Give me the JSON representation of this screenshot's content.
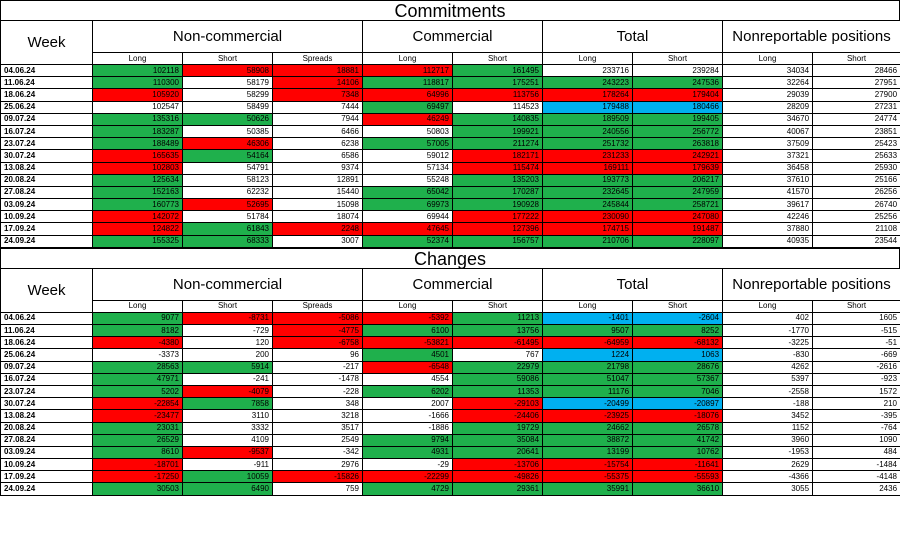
{
  "colors": {
    "green": "#1fb04c",
    "red": "#ff0000",
    "blue": "#00b0f0"
  },
  "commitments": {
    "title": "Commitments",
    "week_label": "Week",
    "groups": {
      "noncommercial": "Non-commercial",
      "commercial": "Commercial",
      "total": "Total",
      "nonreportable": "Nonreportable positions"
    },
    "subheaders": [
      "Long",
      "Short",
      "Spreads",
      "Long",
      "Short",
      "Long",
      "Short",
      "Long",
      "Short"
    ],
    "rows": [
      {
        "week": "04.06.24",
        "values": [
          "102118",
          "58908",
          "18881",
          "112717",
          "161495",
          "233716",
          "239284",
          "34034",
          "28466"
        ],
        "colors": [
          "g",
          "r",
          "r",
          "r",
          "g",
          "w",
          "w",
          "w",
          "w"
        ]
      },
      {
        "week": "11.06.24",
        "values": [
          "110300",
          "58179",
          "14106",
          "118817",
          "175251",
          "243223",
          "247536",
          "32264",
          "27951"
        ],
        "colors": [
          "g",
          "w",
          "r",
          "g",
          "g",
          "g",
          "g",
          "w",
          "w"
        ]
      },
      {
        "week": "18.06.24",
        "values": [
          "105920",
          "58299",
          "7348",
          "64996",
          "113756",
          "178264",
          "179404",
          "29039",
          "27900"
        ],
        "colors": [
          "r",
          "w",
          "r",
          "r",
          "r",
          "r",
          "r",
          "w",
          "w"
        ]
      },
      {
        "week": "25.06.24",
        "values": [
          "102547",
          "58499",
          "7444",
          "69497",
          "114523",
          "179488",
          "180466",
          "28209",
          "27231"
        ],
        "colors": [
          "w",
          "w",
          "w",
          "g",
          "w",
          "b",
          "b",
          "w",
          "w"
        ]
      },
      {
        "week": "09.07.24",
        "values": [
          "135316",
          "50626",
          "7944",
          "46249",
          "140835",
          "189509",
          "199405",
          "34670",
          "24774"
        ],
        "colors": [
          "g",
          "g",
          "w",
          "r",
          "g",
          "g",
          "g",
          "w",
          "w"
        ]
      },
      {
        "week": "16.07.24",
        "values": [
          "183287",
          "50385",
          "6466",
          "50803",
          "199921",
          "240556",
          "256772",
          "40067",
          "23851"
        ],
        "colors": [
          "g",
          "w",
          "w",
          "w",
          "g",
          "g",
          "g",
          "w",
          "w"
        ]
      },
      {
        "week": "23.07.24",
        "values": [
          "188489",
          "46306",
          "6238",
          "57005",
          "211274",
          "251732",
          "263818",
          "37509",
          "25423"
        ],
        "colors": [
          "g",
          "r",
          "w",
          "g",
          "g",
          "g",
          "g",
          "w",
          "w"
        ]
      },
      {
        "week": "30.07.24",
        "values": [
          "165635",
          "54164",
          "6586",
          "59012",
          "182171",
          "231233",
          "242921",
          "37321",
          "25633"
        ],
        "colors": [
          "r",
          "g",
          "w",
          "w",
          "r",
          "r",
          "r",
          "w",
          "w"
        ]
      },
      {
        "week": "13.08.24",
        "values": [
          "102803",
          "54791",
          "9374",
          "57134",
          "115474",
          "169111",
          "179639",
          "36458",
          "25930"
        ],
        "colors": [
          "r",
          "w",
          "w",
          "w",
          "r",
          "r",
          "r",
          "w",
          "w"
        ]
      },
      {
        "week": "20.08.24",
        "values": [
          "125634",
          "58123",
          "12891",
          "55248",
          "135203",
          "193773",
          "206217",
          "37610",
          "25166"
        ],
        "colors": [
          "g",
          "w",
          "w",
          "w",
          "g",
          "g",
          "g",
          "w",
          "w"
        ]
      },
      {
        "week": "27.08.24",
        "values": [
          "152163",
          "62232",
          "15440",
          "65042",
          "170287",
          "232645",
          "247959",
          "41570",
          "26256"
        ],
        "colors": [
          "g",
          "w",
          "w",
          "g",
          "g",
          "g",
          "g",
          "w",
          "w"
        ]
      },
      {
        "week": "03.09.24",
        "values": [
          "160773",
          "52695",
          "15098",
          "69973",
          "190928",
          "245844",
          "258721",
          "39617",
          "26740"
        ],
        "colors": [
          "g",
          "r",
          "w",
          "g",
          "g",
          "g",
          "g",
          "w",
          "w"
        ]
      },
      {
        "week": "10.09.24",
        "values": [
          "142072",
          "51784",
          "18074",
          "69944",
          "177222",
          "230090",
          "247080",
          "42246",
          "25256"
        ],
        "colors": [
          "r",
          "w",
          "w",
          "w",
          "r",
          "r",
          "r",
          "w",
          "w"
        ]
      },
      {
        "week": "17.09.24",
        "values": [
          "124822",
          "61843",
          "2248",
          "47645",
          "127396",
          "174715",
          "191487",
          "37880",
          "21108"
        ],
        "colors": [
          "r",
          "g",
          "r",
          "r",
          "r",
          "r",
          "r",
          "w",
          "w"
        ]
      },
      {
        "week": "24.09.24",
        "values": [
          "155325",
          "68333",
          "3007",
          "52374",
          "156757",
          "210706",
          "228097",
          "40935",
          "23544"
        ],
        "colors": [
          "g",
          "g",
          "w",
          "g",
          "g",
          "g",
          "g",
          "w",
          "w"
        ]
      }
    ]
  },
  "changes": {
    "title": "Changes",
    "week_label": "Week",
    "groups": {
      "noncommercial": "Non-commercial",
      "commercial": "Commercial",
      "total": "Total",
      "nonreportable": "Nonreportable positions"
    },
    "subheaders": [
      "Long",
      "Short",
      "Spreads",
      "Long",
      "Short",
      "Long",
      "Short",
      "Long",
      "Short"
    ],
    "rows": [
      {
        "week": "04.06.24",
        "values": [
          "9077",
          "-8731",
          "-5086",
          "-5392",
          "11213",
          "-1401",
          "-2604",
          "402",
          "1605"
        ],
        "colors": [
          "g",
          "r",
          "r",
          "r",
          "g",
          "b",
          "b",
          "w",
          "w"
        ]
      },
      {
        "week": "11.06.24",
        "values": [
          "8182",
          "-729",
          "-4775",
          "6100",
          "13756",
          "9507",
          "8252",
          "-1770",
          "-515"
        ],
        "colors": [
          "g",
          "w",
          "r",
          "g",
          "g",
          "g",
          "g",
          "w",
          "w"
        ]
      },
      {
        "week": "18.06.24",
        "values": [
          "-4380",
          "120",
          "-6758",
          "-53821",
          "-61495",
          "-64959",
          "-68132",
          "-3225",
          "-51"
        ],
        "colors": [
          "r",
          "w",
          "r",
          "r",
          "r",
          "r",
          "r",
          "w",
          "w"
        ]
      },
      {
        "week": "25.06.24",
        "values": [
          "-3373",
          "200",
          "96",
          "4501",
          "767",
          "1224",
          "1063",
          "-830",
          "-669"
        ],
        "colors": [
          "w",
          "w",
          "w",
          "g",
          "w",
          "b",
          "b",
          "w",
          "w"
        ]
      },
      {
        "week": "09.07.24",
        "values": [
          "28563",
          "5914",
          "-217",
          "-6548",
          "22979",
          "21798",
          "28676",
          "4262",
          "-2616"
        ],
        "colors": [
          "g",
          "g",
          "w",
          "r",
          "g",
          "g",
          "g",
          "w",
          "w"
        ]
      },
      {
        "week": "16.07.24",
        "values": [
          "47971",
          "-241",
          "-1478",
          "4554",
          "59086",
          "51047",
          "57367",
          "5397",
          "-923"
        ],
        "colors": [
          "g",
          "w",
          "w",
          "w",
          "g",
          "g",
          "g",
          "w",
          "w"
        ]
      },
      {
        "week": "23.07.24",
        "values": [
          "5202",
          "-4079",
          "-228",
          "6202",
          "11353",
          "11176",
          "7046",
          "-2558",
          "1572"
        ],
        "colors": [
          "g",
          "r",
          "w",
          "g",
          "g",
          "g",
          "g",
          "w",
          "w"
        ]
      },
      {
        "week": "30.07.24",
        "values": [
          "-22854",
          "7858",
          "348",
          "2007",
          "-29103",
          "-20499",
          "-20897",
          "-188",
          "210"
        ],
        "colors": [
          "r",
          "g",
          "w",
          "w",
          "r",
          "b",
          "b",
          "w",
          "w"
        ]
      },
      {
        "week": "13.08.24",
        "values": [
          "-23477",
          "3110",
          "3218",
          "-1666",
          "-24406",
          "-23925",
          "-18076",
          "3452",
          "-395"
        ],
        "colors": [
          "r",
          "w",
          "w",
          "w",
          "r",
          "r",
          "r",
          "w",
          "w"
        ]
      },
      {
        "week": "20.08.24",
        "values": [
          "23031",
          "3332",
          "3517",
          "-1886",
          "19729",
          "24662",
          "26578",
          "1152",
          "-764"
        ],
        "colors": [
          "g",
          "w",
          "w",
          "w",
          "g",
          "g",
          "g",
          "w",
          "w"
        ]
      },
      {
        "week": "27.08.24",
        "values": [
          "26529",
          "4109",
          "2549",
          "9794",
          "35084",
          "38872",
          "41742",
          "3960",
          "1090"
        ],
        "colors": [
          "g",
          "w",
          "w",
          "g",
          "g",
          "g",
          "g",
          "w",
          "w"
        ]
      },
      {
        "week": "03.09.24",
        "values": [
          "8610",
          "-9537",
          "-342",
          "4931",
          "20641",
          "13199",
          "10762",
          "-1953",
          "484"
        ],
        "colors": [
          "g",
          "r",
          "w",
          "g",
          "g",
          "g",
          "g",
          "w",
          "w"
        ]
      },
      {
        "week": "10.09.24",
        "values": [
          "-18701",
          "-911",
          "2976",
          "-29",
          "-13706",
          "-15754",
          "-11641",
          "2629",
          "-1484"
        ],
        "colors": [
          "r",
          "w",
          "w",
          "w",
          "r",
          "r",
          "r",
          "w",
          "w"
        ]
      },
      {
        "week": "17.09.24",
        "values": [
          "-17250",
          "10059",
          "-15826",
          "-22299",
          "-49826",
          "-55375",
          "-55593",
          "-4366",
          "-4148"
        ],
        "colors": [
          "r",
          "g",
          "r",
          "r",
          "r",
          "r",
          "r",
          "w",
          "w"
        ]
      },
      {
        "week": "24.09.24",
        "values": [
          "30503",
          "6490",
          "759",
          "4729",
          "29361",
          "35991",
          "36610",
          "3055",
          "2436"
        ],
        "colors": [
          "g",
          "g",
          "w",
          "g",
          "g",
          "g",
          "g",
          "w",
          "w"
        ]
      }
    ]
  }
}
